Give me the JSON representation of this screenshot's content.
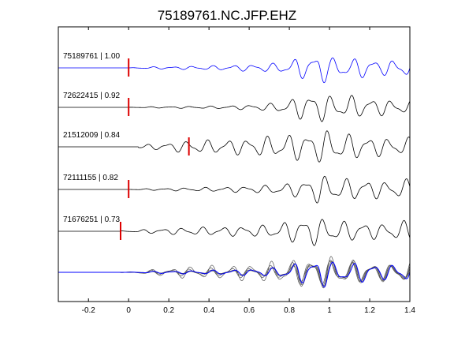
{
  "chart_data": {
    "type": "line",
    "title": "75189761.NC.JFP.EHZ",
    "xlim": [
      -0.35,
      1.4
    ],
    "xticks": [
      -0.2,
      0,
      0.2,
      0.4,
      0.6,
      0.8,
      1,
      1.2,
      1.4
    ],
    "xtick_labels": [
      "-0.2",
      "0",
      "0.2",
      "0.4",
      "0.6",
      "0.8",
      "1",
      "1.2",
      "1.4"
    ],
    "xlabel": "",
    "ylabel": "",
    "grid": false,
    "traces": [
      {
        "label": "75189761 | 1.00",
        "color": "#0000ff",
        "pick": 0.0,
        "onset": 0.0,
        "noise": 0.05,
        "x": [
          -0.35,
          0.0,
          0.1,
          0.2,
          0.3,
          0.4,
          0.5,
          0.6,
          0.7,
          0.8,
          0.85,
          0.9,
          0.95,
          1.0,
          1.05,
          1.1,
          1.15,
          1.2,
          1.25,
          1.3,
          1.35,
          1.4
        ],
        "y": [
          0,
          0,
          0.05,
          0.06,
          0.08,
          0.1,
          0.12,
          0.16,
          0.2,
          0.3,
          0.55,
          0.4,
          1.0,
          0.45,
          0.6,
          0.35,
          0.5,
          0.55,
          0.3,
          0.4,
          0.35,
          0.5
        ]
      },
      {
        "label": "72622415 | 0.92",
        "color": "#000000",
        "pick": 0.0,
        "onset": 0.0,
        "noise": 0.04,
        "x": [
          -0.35,
          0.0,
          0.1,
          0.2,
          0.3,
          0.4,
          0.5,
          0.6,
          0.7,
          0.8,
          0.85,
          0.9,
          0.95,
          1.0,
          1.05,
          1.1,
          1.15,
          1.2,
          1.25,
          1.3,
          1.35,
          1.4
        ],
        "y": [
          0,
          0,
          0.03,
          0.04,
          0.05,
          0.06,
          0.08,
          0.12,
          0.18,
          0.35,
          0.55,
          0.7,
          0.75,
          0.55,
          0.5,
          0.6,
          0.45,
          0.5,
          0.4,
          0.35,
          0.3,
          0.35
        ]
      },
      {
        "label": "21512009 | 0.84",
        "color": "#000000",
        "pick": 0.3,
        "onset": 0.05,
        "noise": 0.04,
        "x": [
          -0.35,
          0.0,
          0.1,
          0.2,
          0.3,
          0.4,
          0.5,
          0.6,
          0.7,
          0.8,
          0.85,
          0.9,
          0.95,
          1.0,
          1.05,
          1.1,
          1.15,
          1.2,
          1.25,
          1.3,
          1.35,
          1.4
        ],
        "y": [
          0,
          0.03,
          0.12,
          0.2,
          0.3,
          0.32,
          0.35,
          0.4,
          0.5,
          0.6,
          0.65,
          0.7,
          0.75,
          0.8,
          0.7,
          0.6,
          0.55,
          0.5,
          0.45,
          0.4,
          0.4,
          0.45
        ]
      },
      {
        "label": "72111155 | 0.82",
        "color": "#000000",
        "pick": 0.0,
        "onset": 0.0,
        "noise": 0.04,
        "x": [
          -0.35,
          0.0,
          0.1,
          0.2,
          0.3,
          0.4,
          0.5,
          0.6,
          0.7,
          0.8,
          0.85,
          0.9,
          0.95,
          1.0,
          1.05,
          1.1,
          1.15,
          1.2,
          1.25,
          1.3,
          1.35,
          1.4
        ],
        "y": [
          0,
          0,
          0.04,
          0.06,
          0.08,
          0.1,
          0.12,
          0.16,
          0.2,
          0.3,
          0.4,
          0.55,
          0.7,
          0.6,
          0.55,
          0.5,
          0.45,
          0.5,
          0.4,
          0.35,
          0.45,
          0.5
        ]
      },
      {
        "label": "71676251 | 0.73",
        "color": "#000000",
        "pick": -0.04,
        "onset": -0.04,
        "noise": 0.04,
        "x": [
          -0.35,
          0.0,
          0.1,
          0.2,
          0.3,
          0.4,
          0.5,
          0.6,
          0.7,
          0.8,
          0.85,
          0.9,
          0.95,
          1.0,
          1.05,
          1.1,
          1.15,
          1.2,
          1.25,
          1.3,
          1.35,
          1.4
        ],
        "y": [
          0,
          0.02,
          0.1,
          0.14,
          0.18,
          0.2,
          0.22,
          0.26,
          0.3,
          0.5,
          0.55,
          0.8,
          0.6,
          0.55,
          0.5,
          0.45,
          0.5,
          0.4,
          0.35,
          0.4,
          0.45,
          0.55
        ]
      }
    ],
    "stack": {
      "label": "",
      "colors": [
        "#0000ff",
        "#555555"
      ],
      "members": 5
    },
    "pick_color": "#dd0000"
  }
}
